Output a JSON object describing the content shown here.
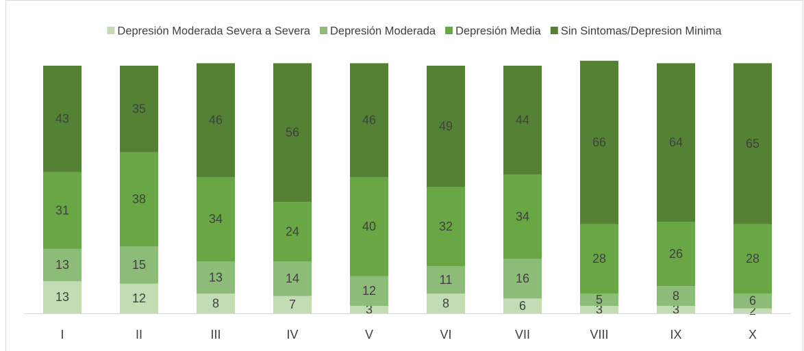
{
  "chart_data": {
    "type": "stacked_bar",
    "categories": [
      "I",
      "II",
      "III",
      "IV",
      "V",
      "VI",
      "VII",
      "VIII",
      "IX",
      "X"
    ],
    "series": [
      {
        "name": "Depresión Moderada Severa a Severa",
        "color": "#c3dcb3",
        "values": [
          13,
          12,
          8,
          7,
          3,
          8,
          6,
          3,
          3,
          2
        ]
      },
      {
        "name": "Depresión Moderada",
        "color": "#8dbb78",
        "values": [
          13,
          15,
          13,
          14,
          12,
          11,
          16,
          5,
          8,
          6
        ]
      },
      {
        "name": "Depresión Media",
        "color": "#69a644",
        "values": [
          31,
          38,
          34,
          24,
          40,
          32,
          34,
          28,
          26,
          28
        ]
      },
      {
        "name": "Sin Sintomas/Depresion Minima",
        "color": "#548235",
        "values": [
          43,
          35,
          46,
          56,
          46,
          49,
          44,
          66,
          64,
          65
        ]
      }
    ],
    "ylim": [
      0,
      100
    ],
    "legend": "top"
  }
}
